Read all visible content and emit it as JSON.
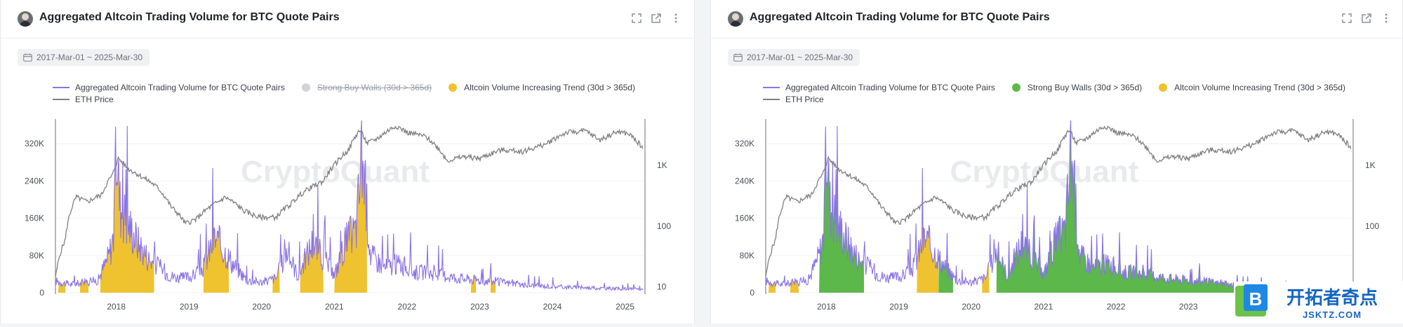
{
  "panels": [
    {
      "title": "Aggregated Altcoin Trading Volume for BTC Quote Pairs",
      "date_range": "2017-Mar-01 ~ 2025-Mar-30",
      "legend": [
        {
          "label": "Aggregated Altcoin Trading Volume for BTC Quote Pairs",
          "kind": "line",
          "color": "#8a73e6",
          "enabled": true
        },
        {
          "label": "Strong Buy Walls (30d > 365d)",
          "kind": "dot",
          "color": "#d2d4d8",
          "enabled": false
        },
        {
          "label": "Altcoin Volume Increasing Trend (30d > 365d)",
          "kind": "dot",
          "color": "#efc22f",
          "enabled": true
        },
        {
          "label": "ETH Price",
          "kind": "line",
          "color": "#808080",
          "enabled": true
        }
      ],
      "show_green": false,
      "x_ticks": [
        "2018",
        "2019",
        "2020",
        "2021",
        "2022",
        "2023",
        "2024",
        "2025"
      ]
    },
    {
      "title": "Aggregated Altcoin Trading Volume for BTC Quote Pairs",
      "date_range": "2017-Mar-01 ~ 2025-Mar-30",
      "legend": [
        {
          "label": "Aggregated Altcoin Trading Volume for BTC Quote Pairs",
          "kind": "line",
          "color": "#8a73e6",
          "enabled": true
        },
        {
          "label": "Strong Buy Walls (30d > 365d)",
          "kind": "dot",
          "color": "#5cb84a",
          "enabled": true
        },
        {
          "label": "Altcoin Volume Increasing Trend (30d > 365d)",
          "kind": "dot",
          "color": "#efc22f",
          "enabled": true
        },
        {
          "label": "ETH Price",
          "kind": "line",
          "color": "#808080",
          "enabled": true
        }
      ],
      "show_green": true,
      "x_ticks": [
        "2018",
        "2019",
        "2020",
        "2021",
        "2022",
        "2023"
      ]
    }
  ],
  "watermark": "CryptoQuant",
  "logo": {
    "text_cn": "开拓者奇点",
    "text_en": "JSKTZ.COM",
    "letter": "B"
  },
  "colors": {
    "volume": "#8a73e6",
    "eth": "#808080",
    "trend": "#efc22f",
    "buy_walls": "#5cb84a"
  },
  "chart_data": [
    {
      "type": "line",
      "title": "Aggregated Altcoin Trading Volume for BTC Quote Pairs",
      "x_range": [
        "2017-03-01",
        "2025-03-30"
      ],
      "y_left": {
        "label": "",
        "ticks": [
          "0",
          "80K",
          "160K",
          "240K",
          "320K"
        ],
        "range": [
          0,
          370000
        ]
      },
      "y_right": {
        "label": "",
        "scale": "log",
        "ticks": [
          "10",
          "100",
          "1K"
        ],
        "range": [
          8,
          5500
        ]
      },
      "volume_series": {
        "name": "Aggregated Altcoin Trading Volume for BTC Quote Pairs",
        "points": [
          [
            2017.17,
            28000
          ],
          [
            2017.35,
            20000
          ],
          [
            2017.55,
            24000
          ],
          [
            2017.75,
            30000
          ],
          [
            2017.9,
            90000
          ],
          [
            2017.97,
            140000
          ],
          [
            2018.0,
            370000
          ],
          [
            2018.05,
            210000
          ],
          [
            2018.15,
            170000
          ],
          [
            2018.3,
            120000
          ],
          [
            2018.45,
            80000
          ],
          [
            2018.6,
            60000
          ],
          [
            2018.75,
            40000
          ],
          [
            2018.9,
            35000
          ],
          [
            2019.05,
            40000
          ],
          [
            2019.2,
            60000
          ],
          [
            2019.35,
            130000
          ],
          [
            2019.45,
            110000
          ],
          [
            2019.6,
            70000
          ],
          [
            2019.8,
            30000
          ],
          [
            2020.0,
            25000
          ],
          [
            2020.2,
            35000
          ],
          [
            2020.35,
            100000
          ],
          [
            2020.5,
            40000
          ],
          [
            2020.7,
            120000
          ],
          [
            2020.9,
            70000
          ],
          [
            2021.0,
            40000
          ],
          [
            2021.15,
            120000
          ],
          [
            2021.3,
            150000
          ],
          [
            2021.38,
            330000
          ],
          [
            2021.5,
            90000
          ],
          [
            2021.7,
            60000
          ],
          [
            2021.9,
            70000
          ],
          [
            2022.1,
            50000
          ],
          [
            2022.4,
            45000
          ],
          [
            2022.7,
            35000
          ],
          [
            2023.0,
            30000
          ],
          [
            2023.3,
            25000
          ],
          [
            2023.6,
            18000
          ],
          [
            2024.0,
            15000
          ],
          [
            2024.4,
            12000
          ],
          [
            2024.8,
            10000
          ],
          [
            2025.25,
            8000
          ]
        ]
      },
      "eth_series": {
        "name": "ETH Price",
        "points": [
          [
            2017.17,
            15
          ],
          [
            2017.3,
            60
          ],
          [
            2017.45,
            300
          ],
          [
            2017.6,
            250
          ],
          [
            2017.8,
            330
          ],
          [
            2017.95,
            700
          ],
          [
            2018.03,
            1300
          ],
          [
            2018.15,
            900
          ],
          [
            2018.35,
            650
          ],
          [
            2018.55,
            450
          ],
          [
            2018.75,
            210
          ],
          [
            2018.95,
            110
          ],
          [
            2019.1,
            130
          ],
          [
            2019.4,
            250
          ],
          [
            2019.5,
            300
          ],
          [
            2019.75,
            180
          ],
          [
            2019.95,
            140
          ],
          [
            2020.2,
            140
          ],
          [
            2020.4,
            230
          ],
          [
            2020.6,
            380
          ],
          [
            2020.85,
            550
          ],
          [
            2021.0,
            1000
          ],
          [
            2021.2,
            1800
          ],
          [
            2021.35,
            3800
          ],
          [
            2021.45,
            2300
          ],
          [
            2021.6,
            2800
          ],
          [
            2021.85,
            4500
          ],
          [
            2022.0,
            3500
          ],
          [
            2022.25,
            3000
          ],
          [
            2022.45,
            1800
          ],
          [
            2022.55,
            1200
          ],
          [
            2022.8,
            1400
          ],
          [
            2023.0,
            1300
          ],
          [
            2023.3,
            1800
          ],
          [
            2023.6,
            1700
          ],
          [
            2023.9,
            2200
          ],
          [
            2024.2,
            3500
          ],
          [
            2024.45,
            3700
          ],
          [
            2024.65,
            2600
          ],
          [
            2024.9,
            3600
          ],
          [
            2025.05,
            3300
          ],
          [
            2025.25,
            1900
          ]
        ]
      },
      "trend_periods": [
        [
          2017.2,
          2017.3
        ],
        [
          2017.5,
          2017.62
        ],
        [
          2017.78,
          2018.52
        ],
        [
          2019.2,
          2019.55
        ],
        [
          2020.15,
          2020.25
        ],
        [
          2020.53,
          2020.85
        ],
        [
          2021.0,
          2021.45
        ],
        [
          2022.88,
          2022.95
        ],
        [
          2023.15,
          2023.22
        ]
      ],
      "buy_wall_periods": []
    },
    {
      "type": "line",
      "title": "Aggregated Altcoin Trading Volume for BTC Quote Pairs",
      "x_range": [
        "2017-03-01",
        "2025-03-30"
      ],
      "y_left": {
        "label": "",
        "ticks": [
          "0",
          "80K",
          "160K",
          "240K",
          "320K"
        ],
        "range": [
          0,
          370000
        ]
      },
      "y_right": {
        "label": "",
        "scale": "log",
        "ticks": [
          "10",
          "100",
          "1K"
        ],
        "range": [
          8,
          5500
        ]
      },
      "trend_periods": [
        [
          2017.2,
          2017.3
        ],
        [
          2017.5,
          2017.62
        ],
        [
          2019.25,
          2019.55
        ],
        [
          2020.15,
          2020.25
        ]
      ],
      "buy_wall_periods": [
        [
          2017.9,
          2018.52
        ],
        [
          2019.55,
          2019.75
        ],
        [
          2020.35,
          2023.75
        ]
      ]
    }
  ]
}
